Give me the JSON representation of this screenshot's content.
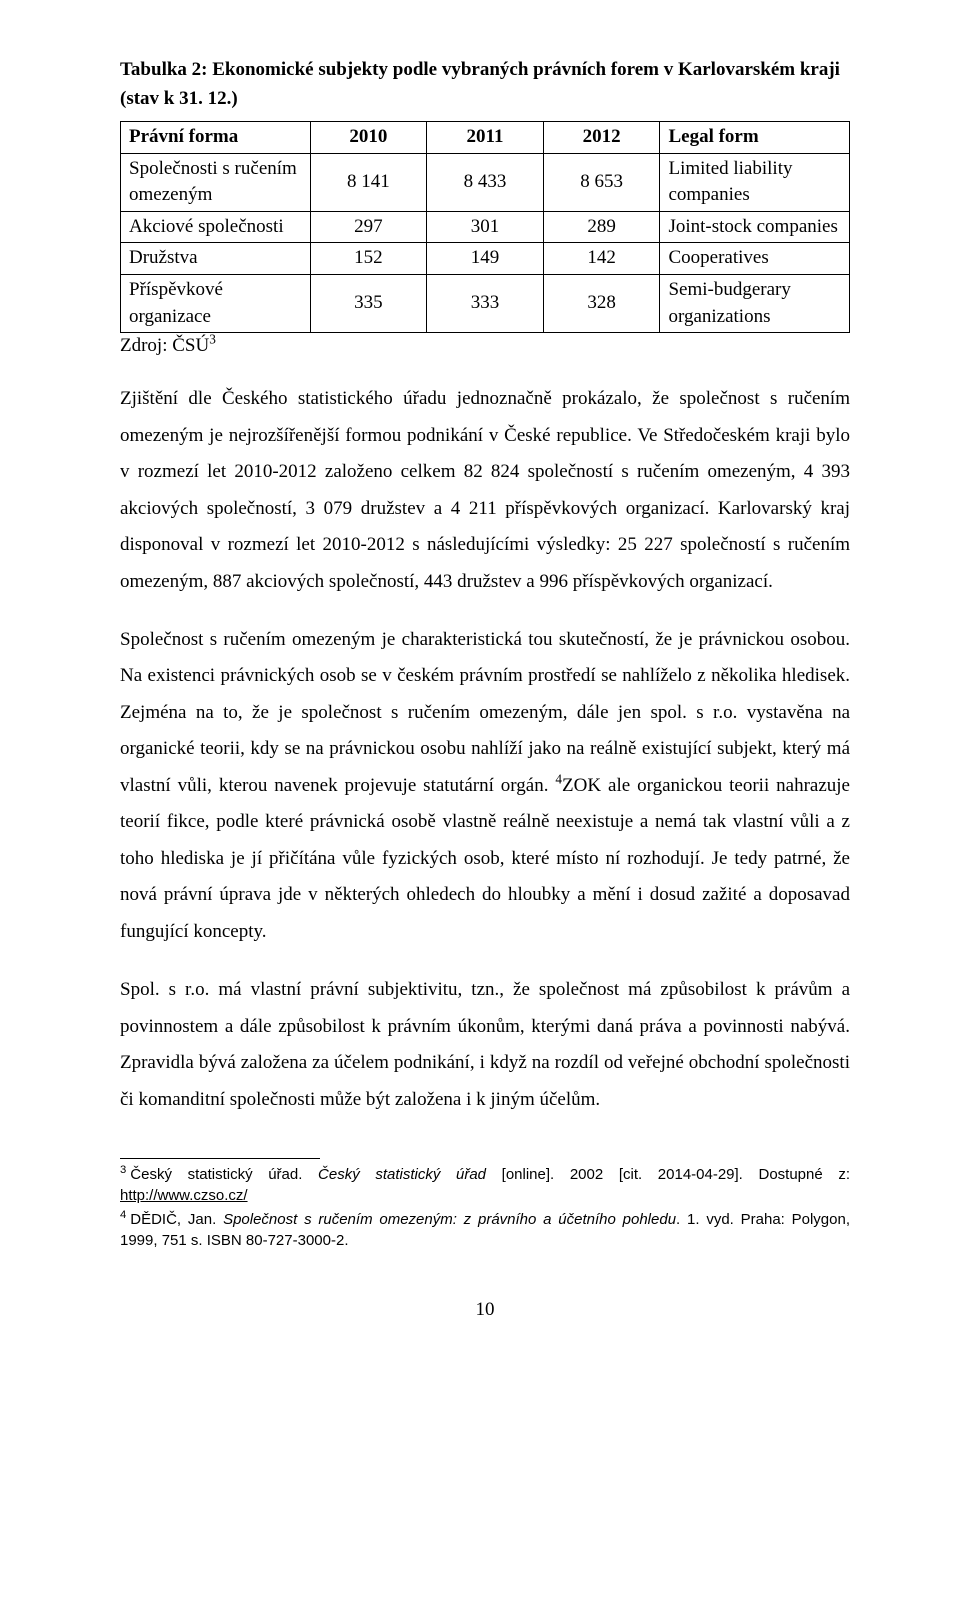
{
  "caption": "Tabulka 2: Ekonomické subjekty podle vybraných právních forem v Karlovarském kraji (stav k 31. 12.)",
  "table": {
    "head": {
      "c1": "Právní forma",
      "c2": "2010",
      "c3": "2011",
      "c4": "2012",
      "c5": "Legal form"
    },
    "rows": [
      {
        "lh": "Společnosti s ručením omezeným",
        "v1": "8 141",
        "v2": "8 433",
        "v3": "8 653",
        "rh": "Limited liability companies"
      },
      {
        "lh": "Akciové společnosti",
        "v1": "297",
        "v2": "301",
        "v3": "289",
        "rh": "Joint-stock companies"
      },
      {
        "lh": "Družstva",
        "v1": "152",
        "v2": "149",
        "v3": "142",
        "rh": "Cooperatives"
      },
      {
        "lh": "Příspěvkové organizace",
        "v1": "335",
        "v2": "333",
        "v3": "328",
        "rh": "Semi-budgerary organizations"
      }
    ]
  },
  "source_label": "Zdroj: ČSÚ",
  "source_sup": "3",
  "para1": "Zjištění dle Českého statistického úřadu jednoznačně prokázalo, že společnost s ručením omezeným je nejrozšířenější formou podnikání v České republice. Ve Středočeském kraji bylo v rozmezí let 2010-2012 založeno celkem 82 824 společností s ručením omezeným, 4 393 akciových společností, 3 079 družstev a 4 211 příspěvkových organizací. Karlovarský kraj disponoval v rozmezí let 2010-2012 s následujícími výsledky: 25 227 společností s ručením omezeným, 887 akciových společností, 443 družstev a 996 příspěvkových organizací.",
  "para2_pre": "Společnost s ručením omezeným je charakteristická tou skutečností, že je právnickou osobou. Na existenci právnických osob se v českém právním prostředí se nahlíželo z několika hledisek. Zejména na to, že je společnost s ručením omezeným, dále jen spol. s r.o. vystavěna na organické teorii, kdy se na právnickou osobu nahlíží jako na reálně existující subjekt, který má vlastní vůli, kterou navenek projevuje statutární orgán. ",
  "para2_sup": "4",
  "para2_post": "ZOK ale organickou teorii nahrazuje teorií fikce, podle které právnická osobě vlastně reálně neexistuje a nemá tak vlastní vůli a z toho hlediska je jí přičítána vůle fyzických osob, které místo ní rozhodují. Je tedy patrné, že nová právní úprava jde v některých ohledech do hloubky a mění i dosud zažité a doposavad fungující koncepty.",
  "para3": "Spol. s r.o. má vlastní právní subjektivitu, tzn., že společnost má způsobilost k právům a povinnostem a dále způsobilost k právním úkonům, kterými daná práva a povinnosti nabývá. Zpravidla bývá založena za účelem podnikání, i když na rozdíl od veřejné obchodní společnosti či komanditní společnosti může být založena i k jiným účelům.",
  "footnotes": {
    "f3": {
      "num": "3",
      "text_pre": "Český statistický úřad. ",
      "text_italic": "Český statistický úřad ",
      "text_mid": "[online]. 2002 [cit. 2014-04-29]. Dostupné z: ",
      "link_text": "http://www.czso.cz/"
    },
    "f4": {
      "num": "4",
      "text_pre": "DĚDIČ, Jan. ",
      "text_italic": "Společnost s ručením omezeným: z právního a účetního pohledu",
      "text_post": ". 1. vyd. Praha: Polygon, 1999, 751 s. ISBN 80-727-3000-2."
    }
  },
  "page_number": "10"
}
